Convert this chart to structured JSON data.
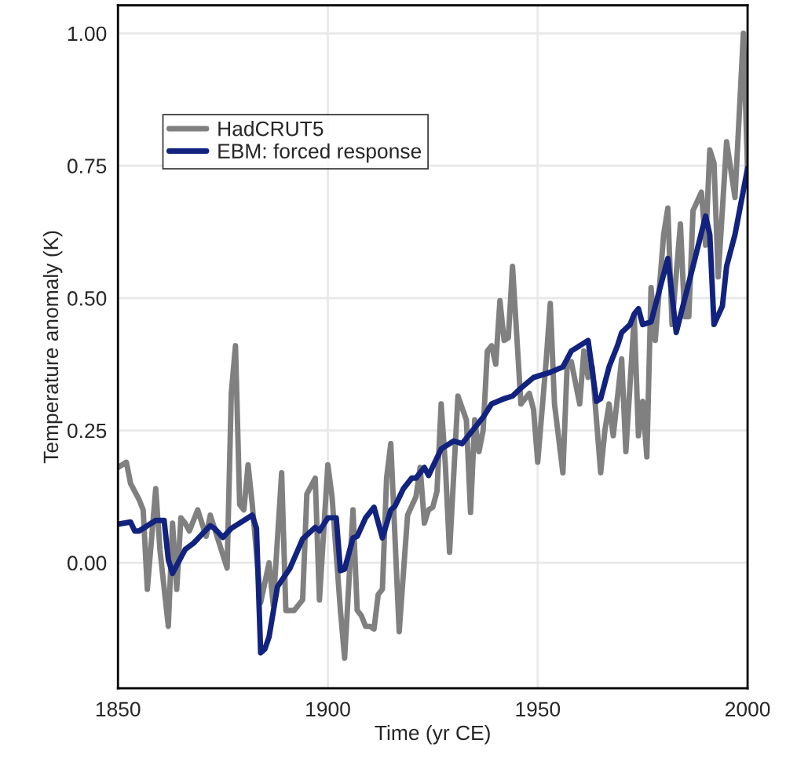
{
  "chart_data": {
    "type": "line",
    "xlabel": "Time (yr CE)",
    "ylabel": "Temperature anomaly (K)",
    "xlim": [
      1850,
      2000
    ],
    "xticks": [
      1850,
      1900,
      1950,
      2000
    ],
    "ylim": [
      -0.237,
      1.053
    ],
    "yticks": [
      {
        "value": 0,
        "label": "0.00"
      },
      {
        "value": 0.25,
        "label": "0.25"
      },
      {
        "value": 0.5,
        "label": "0.50"
      },
      {
        "value": 0.75,
        "label": "0.75"
      },
      {
        "value": 1,
        "label": "1.00"
      }
    ],
    "grid": true,
    "legend": "top left",
    "line_style": "solid",
    "marker": "none",
    "series": [
      {
        "name": "HadCRUT5",
        "color": "#808080",
        "x": [
          1850,
          1852,
          1853,
          1855,
          1856,
          1857,
          1859,
          1860,
          1862,
          1863,
          1864,
          1865,
          1866,
          1867,
          1869,
          1871,
          1872,
          1874,
          1876,
          1877,
          1878,
          1879,
          1880,
          1881,
          1882,
          1884,
          1886,
          1887,
          1889,
          1890,
          1892,
          1894,
          1895,
          1897,
          1898,
          1900,
          1901,
          1903,
          1904,
          1906,
          1907,
          1908,
          1909,
          1910,
          1911,
          1912,
          1913,
          1914,
          1915,
          1917,
          1919,
          1921,
          1922,
          1923,
          1924,
          1925,
          1926,
          1927,
          1928,
          1929,
          1931,
          1933,
          1934,
          1935,
          1936,
          1937,
          1938,
          1939,
          1940,
          1941,
          1942,
          1943,
          1944,
          1946,
          1948,
          1949,
          1950,
          1952,
          1953,
          1954,
          1956,
          1957,
          1958,
          1960,
          1961,
          1962,
          1963,
          1965,
          1966,
          1967,
          1968,
          1970,
          1971,
          1973,
          1974,
          1975,
          1976,
          1977,
          1978,
          1980,
          1981,
          1982,
          1984,
          1985,
          1986,
          1987,
          1989,
          1990,
          1991,
          1992,
          1993,
          1995,
          1997,
          1999,
          2000
        ],
        "values": [
          0.18,
          0.19,
          0.15,
          0.12,
          0.1,
          -0.05,
          0.14,
          0.025,
          -0.12,
          0.075,
          -0.05,
          0.085,
          0.075,
          0.06,
          0.1,
          0.05,
          0.09,
          0.04,
          -0.01,
          0.32,
          0.41,
          0.11,
          0.1,
          0.185,
          0.11,
          -0.075,
          0.0,
          -0.08,
          0.17,
          -0.09,
          -0.09,
          -0.07,
          0.13,
          0.16,
          -0.07,
          0.185,
          0.125,
          -0.09,
          -0.18,
          0.1,
          -0.09,
          -0.1,
          -0.12,
          -0.12,
          -0.125,
          -0.06,
          -0.05,
          0.16,
          0.225,
          -0.13,
          0.09,
          0.125,
          0.18,
          0.075,
          0.1,
          0.105,
          0.135,
          0.3,
          0.185,
          0.02,
          0.315,
          0.27,
          0.095,
          0.27,
          0.21,
          0.25,
          0.4,
          0.41,
          0.375,
          0.495,
          0.42,
          0.425,
          0.56,
          0.3,
          0.32,
          0.29,
          0.19,
          0.38,
          0.49,
          0.3,
          0.17,
          0.37,
          0.38,
          0.3,
          0.4,
          0.35,
          0.37,
          0.17,
          0.25,
          0.3,
          0.24,
          0.385,
          0.21,
          0.465,
          0.24,
          0.305,
          0.2,
          0.52,
          0.42,
          0.62,
          0.67,
          0.45,
          0.64,
          0.465,
          0.465,
          0.665,
          0.7,
          0.6,
          0.78,
          0.755,
          0.54,
          0.795,
          0.69,
          1.0,
          0.74
        ]
      },
      {
        "name": "EBM: forced response",
        "color": "#12237f",
        "x": [
          1850,
          1853,
          1854,
          1855,
          1859,
          1861,
          1862,
          1863,
          1865,
          1866,
          1868,
          1871,
          1872,
          1873,
          1875,
          1877,
          1879,
          1882,
          1883,
          1884,
          1885,
          1886,
          1888,
          1891,
          1894,
          1897,
          1898,
          1900,
          1902,
          1903,
          1904,
          1906,
          1907,
          1909,
          1911,
          1913,
          1915,
          1916,
          1918,
          1920,
          1921,
          1923,
          1924,
          1927,
          1930,
          1932,
          1934,
          1937,
          1939,
          1942,
          1944,
          1946,
          1949,
          1953,
          1956,
          1958,
          1960,
          1962,
          1964,
          1965,
          1967,
          1969,
          1970,
          1972,
          1973,
          1974,
          1975,
          1977,
          1981,
          1983,
          1987,
          1990,
          1991,
          1992,
          1994,
          1995,
          1997,
          2000
        ],
        "values": [
          0.073,
          0.077,
          0.06,
          0.06,
          0.08,
          0.08,
          0.006,
          -0.02,
          0.01,
          0.025,
          0.037,
          0.062,
          0.07,
          0.065,
          0.048,
          0.065,
          0.075,
          0.09,
          0.065,
          -0.17,
          -0.163,
          -0.14,
          -0.045,
          -0.01,
          0.045,
          0.067,
          0.06,
          0.085,
          0.085,
          -0.015,
          -0.012,
          0.047,
          0.05,
          0.085,
          0.105,
          0.047,
          0.1,
          0.107,
          0.14,
          0.16,
          0.16,
          0.18,
          0.165,
          0.215,
          0.23,
          0.225,
          0.245,
          0.275,
          0.3,
          0.31,
          0.315,
          0.33,
          0.35,
          0.36,
          0.37,
          0.4,
          0.41,
          0.42,
          0.305,
          0.31,
          0.37,
          0.41,
          0.435,
          0.45,
          0.47,
          0.48,
          0.45,
          0.455,
          0.575,
          0.435,
          0.56,
          0.655,
          0.62,
          0.45,
          0.485,
          0.56,
          0.62,
          0.745
        ]
      }
    ]
  }
}
